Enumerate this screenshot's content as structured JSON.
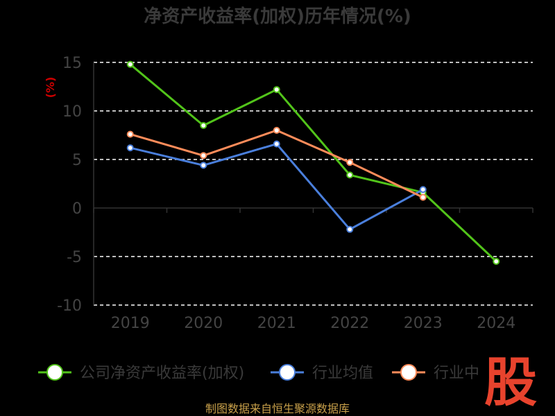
{
  "chart_data": {
    "type": "line",
    "title": "净资产收益率(加权)历年情况(%)",
    "ylabel": "(%)",
    "xlabel": "",
    "categories": [
      "2019",
      "2020",
      "2021",
      "2022",
      "2023",
      "2024"
    ],
    "y_ticks": [
      "15",
      "10",
      "5",
      "0",
      "-5",
      "-10"
    ],
    "ylim": [
      -10,
      15
    ],
    "grid": true,
    "legend_position": "bottom",
    "series": [
      {
        "name": "公司净资产收益率(加权)",
        "color": "#52c41a",
        "values": [
          14.8,
          8.5,
          12.2,
          3.4,
          1.6,
          -5.5
        ]
      },
      {
        "name": "行业均值",
        "color": "#4a7fdc",
        "values": [
          6.2,
          4.4,
          6.6,
          -2.2,
          1.9,
          null
        ]
      },
      {
        "name": "行业中",
        "color": "#ff8c5a",
        "values": [
          7.6,
          5.4,
          8.0,
          4.7,
          1.1,
          null
        ]
      }
    ]
  },
  "source": "制图数据来自恒生聚源数据库",
  "watermark_text": "股"
}
